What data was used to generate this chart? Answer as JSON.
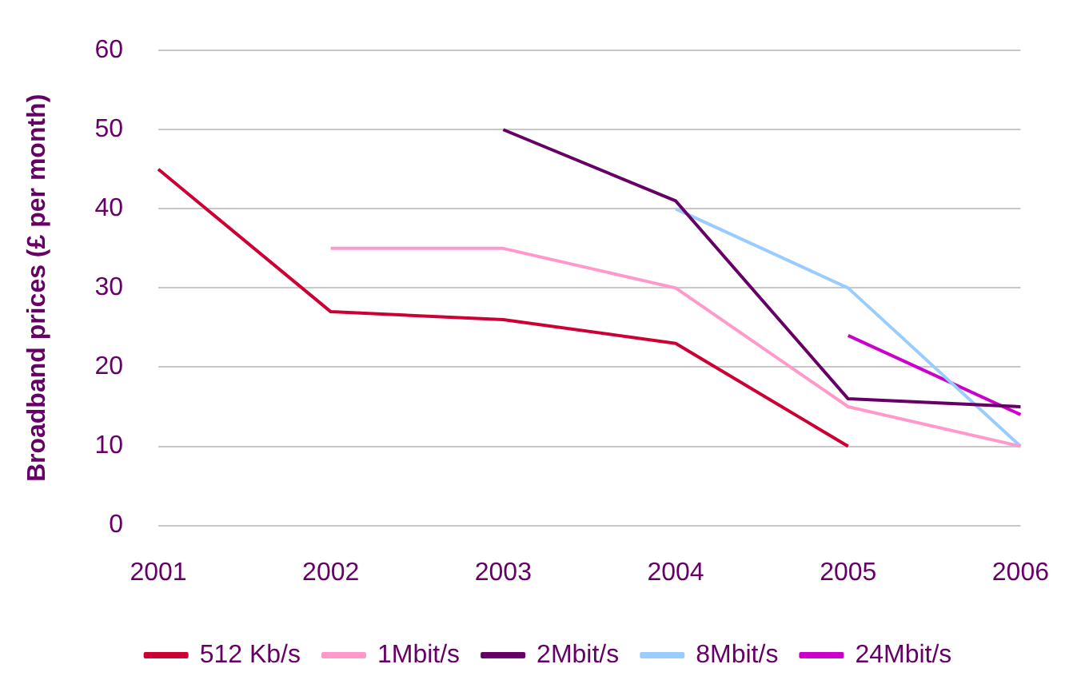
{
  "chart_data": {
    "type": "line",
    "ylabel": "Broadband prices (£ per month)",
    "categories": [
      "2001",
      "2002",
      "2003",
      "2004",
      "2005",
      "2006"
    ],
    "series": [
      {
        "name": "512 Kb/s",
        "color": "#cc0033",
        "values": [
          45,
          27,
          26,
          23,
          10,
          null
        ]
      },
      {
        "name": "1Mbit/s",
        "color": "#ff99cc",
        "values": [
          null,
          35,
          35,
          30,
          15,
          10
        ]
      },
      {
        "name": "2Mbit/s",
        "color": "#660066",
        "values": [
          null,
          null,
          50,
          41,
          16,
          15
        ]
      },
      {
        "name": "8Mbit/s",
        "color": "#99ccff",
        "values": [
          null,
          null,
          null,
          40,
          30,
          10
        ]
      },
      {
        "name": "24Mbit/s",
        "color": "#cc00cc",
        "values": [
          null,
          null,
          null,
          null,
          24,
          14
        ]
      }
    ],
    "ylim": [
      0,
      60
    ],
    "yticks": [
      0,
      10,
      20,
      30,
      40,
      50,
      60
    ],
    "grid": "y",
    "legend": "bottom",
    "marker": "none",
    "line_style": "solid"
  }
}
